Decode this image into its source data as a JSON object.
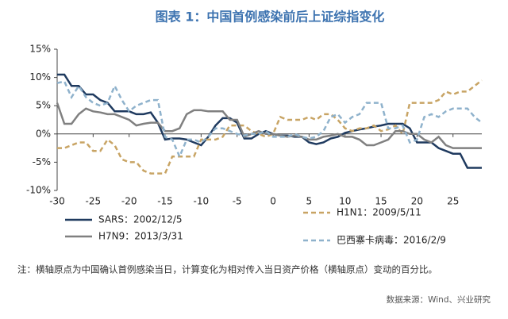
{
  "chart_data": {
    "type": "line",
    "title": "图表 1：中国首例感染前后上证综指变化",
    "note": "注：横轴原点为中国确认首例感染当日，计算变化为相对传入当日资产价格（横轴原点）变动的百分比。",
    "source": "数据来源：Wind、兴业研究",
    "x": [
      -30,
      -29,
      -28,
      -27,
      -26,
      -25,
      -24,
      -23,
      -22,
      -21,
      -20,
      -19,
      -18,
      -17,
      -16,
      -15,
      -14,
      -13,
      -12,
      -11,
      -10,
      -9,
      -8,
      -7,
      -6,
      -5,
      -4,
      -3,
      -2,
      -1,
      0,
      1,
      2,
      3,
      4,
      5,
      6,
      7,
      8,
      9,
      10,
      11,
      12,
      13,
      14,
      15,
      16,
      17,
      18,
      19,
      20,
      21,
      22,
      23,
      24,
      25,
      26,
      27,
      28,
      29
    ],
    "xlim": [
      -30,
      29
    ],
    "xticks": [
      -30,
      -25,
      -20,
      -15,
      -10,
      -5,
      0,
      5,
      10,
      15,
      20,
      25
    ],
    "ylim": [
      -10,
      15
    ],
    "yticks": [
      {
        "value": -10,
        "label": "-10%"
      },
      {
        "value": -5,
        "label": "-5%"
      },
      {
        "value": 0,
        "label": "0%"
      },
      {
        "value": 5,
        "label": "5%"
      },
      {
        "value": 10,
        "label": "10%"
      },
      {
        "value": 15,
        "label": "15%"
      }
    ],
    "series": [
      {
        "name": "SARS：2002/12/5",
        "color": "#1f3a5f",
        "dashed": false,
        "values": [
          10.5,
          10.5,
          8.5,
          8.5,
          7,
          7,
          6,
          5.5,
          4,
          4,
          4,
          3.5,
          3.5,
          3.8,
          2,
          -1,
          -0.8,
          -0.8,
          -1,
          -1.5,
          -2,
          -0.5,
          1.5,
          2.8,
          2.8,
          2,
          -0.8,
          -0.8,
          0,
          0.5,
          0,
          -0.3,
          -0.3,
          -0.5,
          -0.5,
          -1.5,
          -1.8,
          -1.5,
          -0.8,
          -0.5,
          0.2,
          0.5,
          0.8,
          1,
          1.3,
          1.5,
          1.8,
          1.8,
          1.8,
          1,
          -1.5,
          -1.5,
          -1.5,
          -2.5,
          -3,
          -3.5,
          -3.5,
          -6,
          -6,
          -6
        ]
      },
      {
        "name": "H1N1：2009/5/11",
        "color": "#c8a464",
        "dashed": true,
        "values": [
          -2.5,
          -2.5,
          -2,
          -1.5,
          -1.5,
          -3,
          -3,
          -1,
          -2,
          -4.5,
          -5,
          -5,
          -6.5,
          -7,
          -7,
          -7,
          -4,
          -4,
          -4,
          -4,
          -1,
          -1,
          -1,
          -0.5,
          1.5,
          1.5,
          1.5,
          0.5,
          0,
          -0.5,
          0,
          3,
          2.5,
          2.5,
          2.5,
          3,
          2.5,
          3.5,
          3.5,
          2.5,
          1,
          0.5,
          1,
          1,
          1.5,
          0.5,
          0.8,
          1.5,
          0,
          5.5,
          5.5,
          5.5,
          5.5,
          6,
          7.5,
          7,
          7.5,
          7.5,
          8.5,
          9.5
        ]
      },
      {
        "name": "H7N9：2013/3/31",
        "color": "#808080",
        "dashed": false,
        "values": [
          5.5,
          1.8,
          1.8,
          3.5,
          4.5,
          4,
          3.8,
          3.5,
          3.5,
          3,
          2.5,
          1.5,
          1.8,
          2,
          2,
          0.5,
          0.5,
          1,
          3.5,
          4.2,
          4.2,
          4,
          4,
          4,
          2.5,
          2.5,
          -0.5,
          0,
          0.5,
          0,
          0,
          -0.3,
          -0.5,
          -0.3,
          -0.5,
          -1,
          -1,
          -0.5,
          -0.3,
          0,
          -0.5,
          -0.5,
          -1,
          -2,
          -2,
          -1.5,
          -1,
          0.5,
          0.5,
          0,
          0,
          -1,
          -1.5,
          -0.5,
          -2,
          -2.5,
          -2.5,
          -2.5,
          -2.5,
          -2.5
        ]
      },
      {
        "name": "巴西寨卡病毒：2016/2/9",
        "color": "#8fb2cc",
        "dashed": true,
        "values": [
          9,
          9.3,
          6.5,
          8.5,
          6.5,
          5.5,
          5,
          5.5,
          8.5,
          6,
          4,
          5,
          5.5,
          6,
          6,
          -0.5,
          -1,
          -4,
          -1,
          -1,
          -1.5,
          -0.5,
          1,
          1,
          0.5,
          0,
          -0.3,
          0,
          0,
          0.5,
          -0.5,
          -0.5,
          -0.5,
          0,
          -0.5,
          -0.8,
          -0.5,
          0.5,
          3,
          3.5,
          2,
          3,
          3.5,
          5.5,
          5.5,
          5.5,
          1,
          1,
          1.5,
          -1.5,
          -1,
          3,
          3.5,
          3,
          4,
          4.5,
          4.5,
          4.5,
          3,
          2
        ]
      }
    ]
  }
}
